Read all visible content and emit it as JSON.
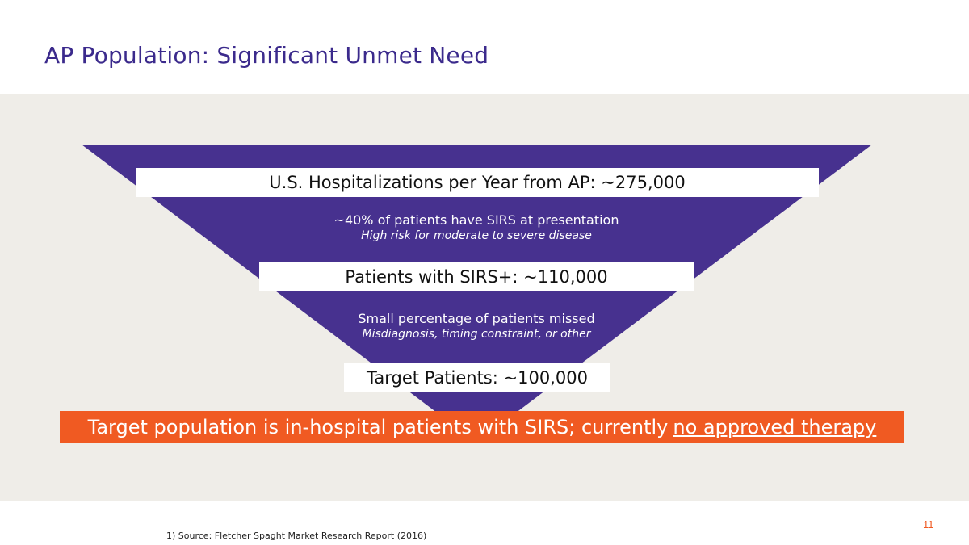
{
  "title": "AP Population: Significant Unmet Need",
  "colors": {
    "funnel": "#47318f",
    "accent": "#f05a22",
    "panel": "#efede8"
  },
  "funnel": {
    "level1": "U.S. Hospitalizations per Year from AP: ~275,000",
    "note1_main": "~40% of patients have SIRS at presentation",
    "note1_sub": "High risk for moderate to severe disease",
    "level2": "Patients with SIRS+: ~110,000",
    "note2_main": "Small percentage of patients missed",
    "note2_sub": "Misdiagnosis, timing constraint, or other",
    "level3": "Target Patients: ~100,000"
  },
  "banner": {
    "text": "Target population is in-hospital patients with SIRS; currently",
    "emphasis": "no approved therapy"
  },
  "footnote": "1) Source: Fletcher Spaght Market Research Report (2016)",
  "page_number": "11"
}
